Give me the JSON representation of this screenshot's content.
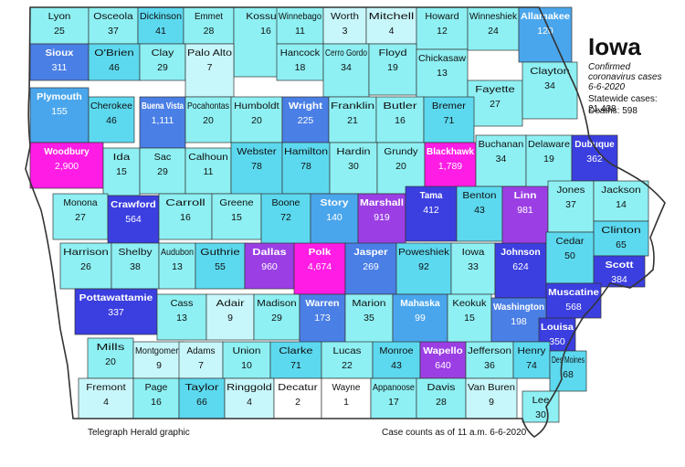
{
  "legend": {
    "title": "Iowa",
    "subtitle_1": "Confirmed",
    "subtitle_2": "coronavirus cases",
    "date": "6-6-2020",
    "statewide_label": "Statewide cases:",
    "statewide_value": "21,438",
    "deaths_label": "Deaths:",
    "deaths_value": "598"
  },
  "footer": {
    "credit": "Telegraph Herald graphic",
    "asof": "Case counts as of 11 a.m. 6-6-2020"
  },
  "colors": {
    "pale": "#c8f7fb",
    "light": "#8ef0f3",
    "mid": "#5cd9ef",
    "midblue": "#4aa6ec",
    "blue": "#4a7fe6",
    "darkblue": "#3b3fe0",
    "purple": "#9b3fe4",
    "magenta": "#ff1ce4",
    "white": "#ffffff",
    "border": "#333333"
  },
  "counties": [
    {
      "name": "Lyon",
      "cases": "25",
      "shade": "light"
    },
    {
      "name": "Osceola",
      "cases": "37",
      "shade": "light"
    },
    {
      "name": "Dickinson",
      "cases": "41",
      "shade": "mid"
    },
    {
      "name": "Emmet",
      "cases": "28",
      "shade": "light"
    },
    {
      "name": "Kossuth",
      "cases": "16",
      "shade": "light"
    },
    {
      "name": "Winnebago",
      "cases": "11",
      "shade": "light"
    },
    {
      "name": "Worth",
      "cases": "3",
      "shade": "pale"
    },
    {
      "name": "Mitchell",
      "cases": "4",
      "shade": "pale"
    },
    {
      "name": "Howard",
      "cases": "12",
      "shade": "light"
    },
    {
      "name": "Winneshiek",
      "cases": "24",
      "shade": "light"
    },
    {
      "name": "Allamakee",
      "cases": "120",
      "shade": "midblue"
    },
    {
      "name": "Sioux",
      "cases": "311",
      "shade": "blue"
    },
    {
      "name": "O'Brien",
      "cases": "46",
      "shade": "mid"
    },
    {
      "name": "Clay",
      "cases": "29",
      "shade": "light"
    },
    {
      "name": "Palo Alto",
      "cases": "7",
      "shade": "pale"
    },
    {
      "name": "Hancock",
      "cases": "18",
      "shade": "light"
    },
    {
      "name": "Cerro Gordo",
      "cases": "34",
      "shade": "light"
    },
    {
      "name": "Floyd",
      "cases": "19",
      "shade": "light"
    },
    {
      "name": "Chickasaw",
      "cases": "13",
      "shade": "light"
    },
    {
      "name": "Fayette",
      "cases": "27",
      "shade": "light"
    },
    {
      "name": "Clayton",
      "cases": "34",
      "shade": "light"
    },
    {
      "name": "Plymouth",
      "cases": "155",
      "shade": "midblue"
    },
    {
      "name": "Cherokee",
      "cases": "46",
      "shade": "mid"
    },
    {
      "name": "Buena Vista",
      "cases": "1,111",
      "shade": "blue"
    },
    {
      "name": "Pocahontas",
      "cases": "20",
      "shade": "light"
    },
    {
      "name": "Humboldt",
      "cases": "20",
      "shade": "light"
    },
    {
      "name": "Wright",
      "cases": "225",
      "shade": "blue"
    },
    {
      "name": "Franklin",
      "cases": "21",
      "shade": "light"
    },
    {
      "name": "Butler",
      "cases": "16",
      "shade": "light"
    },
    {
      "name": "Bremer",
      "cases": "71",
      "shade": "mid"
    },
    {
      "name": "Woodbury",
      "cases": "2,900",
      "shade": "magenta"
    },
    {
      "name": "Ida",
      "cases": "15",
      "shade": "light"
    },
    {
      "name": "Sac",
      "cases": "29",
      "shade": "light"
    },
    {
      "name": "Calhoun",
      "cases": "11",
      "shade": "light"
    },
    {
      "name": "Webster",
      "cases": "78",
      "shade": "mid"
    },
    {
      "name": "Hamilton",
      "cases": "78",
      "shade": "mid"
    },
    {
      "name": "Hardin",
      "cases": "30",
      "shade": "light"
    },
    {
      "name": "Grundy",
      "cases": "20",
      "shade": "light"
    },
    {
      "name": "Blackhawk",
      "cases": "1,789",
      "shade": "magenta"
    },
    {
      "name": "Buchanan",
      "cases": "34",
      "shade": "light"
    },
    {
      "name": "Delaware",
      "cases": "19",
      "shade": "light"
    },
    {
      "name": "Dubuque",
      "cases": "362",
      "shade": "darkblue"
    },
    {
      "name": "Monona",
      "cases": "27",
      "shade": "light"
    },
    {
      "name": "Crawford",
      "cases": "564",
      "shade": "darkblue"
    },
    {
      "name": "Carroll",
      "cases": "16",
      "shade": "light"
    },
    {
      "name": "Greene",
      "cases": "15",
      "shade": "light"
    },
    {
      "name": "Boone",
      "cases": "72",
      "shade": "mid"
    },
    {
      "name": "Story",
      "cases": "140",
      "shade": "midblue"
    },
    {
      "name": "Marshall",
      "cases": "919",
      "shade": "purple"
    },
    {
      "name": "Tama",
      "cases": "412",
      "shade": "darkblue"
    },
    {
      "name": "Benton",
      "cases": "43",
      "shade": "mid"
    },
    {
      "name": "Linn",
      "cases": "981",
      "shade": "purple"
    },
    {
      "name": "Jones",
      "cases": "37",
      "shade": "light"
    },
    {
      "name": "Jackson",
      "cases": "14",
      "shade": "light"
    },
    {
      "name": "Clinton",
      "cases": "65",
      "shade": "mid"
    },
    {
      "name": "Harrison",
      "cases": "26",
      "shade": "light"
    },
    {
      "name": "Shelby",
      "cases": "38",
      "shade": "light"
    },
    {
      "name": "Audubon",
      "cases": "13",
      "shade": "light"
    },
    {
      "name": "Guthrie",
      "cases": "55",
      "shade": "mid"
    },
    {
      "name": "Dallas",
      "cases": "960",
      "shade": "purple"
    },
    {
      "name": "Polk",
      "cases": "4,674",
      "shade": "magenta"
    },
    {
      "name": "Jasper",
      "cases": "269",
      "shade": "blue"
    },
    {
      "name": "Poweshiek",
      "cases": "92",
      "shade": "mid"
    },
    {
      "name": "Iowa",
      "cases": "33",
      "shade": "light"
    },
    {
      "name": "Johnson",
      "cases": "624",
      "shade": "darkblue"
    },
    {
      "name": "Cedar",
      "cases": "50",
      "shade": "mid"
    },
    {
      "name": "Scott",
      "cases": "384",
      "shade": "darkblue"
    },
    {
      "name": "Muscatine",
      "cases": "568",
      "shade": "darkblue"
    },
    {
      "name": "Pottawattamie",
      "cases": "337",
      "shade": "darkblue"
    },
    {
      "name": "Cass",
      "cases": "13",
      "shade": "light"
    },
    {
      "name": "Adair",
      "cases": "9",
      "shade": "pale"
    },
    {
      "name": "Madison",
      "cases": "29",
      "shade": "light"
    },
    {
      "name": "Warren",
      "cases": "173",
      "shade": "blue"
    },
    {
      "name": "Marion",
      "cases": "35",
      "shade": "light"
    },
    {
      "name": "Mahaska",
      "cases": "99",
      "shade": "midblue"
    },
    {
      "name": "Keokuk",
      "cases": "15",
      "shade": "light"
    },
    {
      "name": "Washington",
      "cases": "198",
      "shade": "blue"
    },
    {
      "name": "Louisa",
      "cases": "350",
      "shade": "darkblue"
    },
    {
      "name": "Mills",
      "cases": "20",
      "shade": "light"
    },
    {
      "name": "Montgomery",
      "cases": "9",
      "shade": "pale"
    },
    {
      "name": "Adams",
      "cases": "7",
      "shade": "pale"
    },
    {
      "name": "Union",
      "cases": "10",
      "shade": "light"
    },
    {
      "name": "Clarke",
      "cases": "71",
      "shade": "mid"
    },
    {
      "name": "Lucas",
      "cases": "22",
      "shade": "light"
    },
    {
      "name": "Monroe",
      "cases": "43",
      "shade": "mid"
    },
    {
      "name": "Wapello",
      "cases": "640",
      "shade": "purple"
    },
    {
      "name": "Jefferson",
      "cases": "36",
      "shade": "light"
    },
    {
      "name": "Henry",
      "cases": "74",
      "shade": "mid"
    },
    {
      "name": "Des Moines",
      "cases": "68",
      "shade": "mid"
    },
    {
      "name": "Fremont",
      "cases": "4",
      "shade": "pale"
    },
    {
      "name": "Page",
      "cases": "16",
      "shade": "light"
    },
    {
      "name": "Taylor",
      "cases": "66",
      "shade": "mid"
    },
    {
      "name": "Ringgold",
      "cases": "4",
      "shade": "pale"
    },
    {
      "name": "Decatur",
      "cases": "2",
      "shade": "white"
    },
    {
      "name": "Wayne",
      "cases": "1",
      "shade": "white"
    },
    {
      "name": "Appanoose",
      "cases": "17",
      "shade": "light"
    },
    {
      "name": "Davis",
      "cases": "28",
      "shade": "light"
    },
    {
      "name": "Van Buren",
      "cases": "9",
      "shade": "pale"
    },
    {
      "name": "Lee",
      "cases": "30",
      "shade": "light"
    }
  ]
}
